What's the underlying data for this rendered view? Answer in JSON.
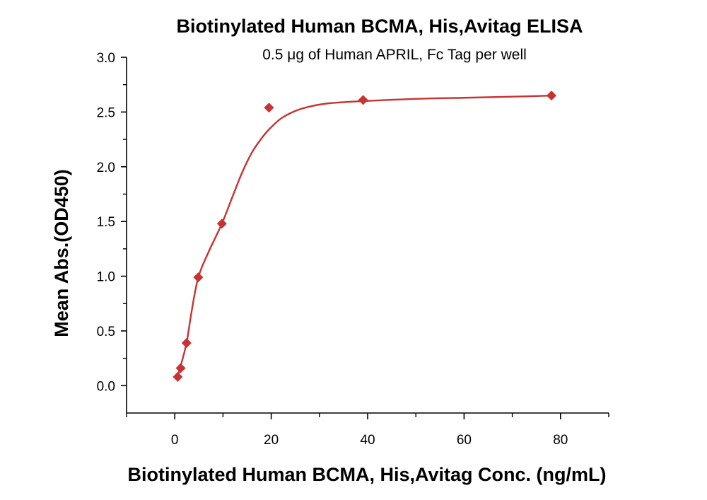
{
  "chart_data": {
    "type": "scatter",
    "title": "Biotinylated Human BCMA, His,Avitag ELISA",
    "subtitle": "0.5 μg of Human APRIL, Fc Tag per well",
    "xlabel": "Biotinylated Human BCMA, His,Avitag Conc. (ng/mL)",
    "ylabel": "Mean Abs.(OD450)",
    "xlim": [
      -10,
      90
    ],
    "ylim": [
      -0.25,
      3.0
    ],
    "x_ticks": [
      0,
      20,
      40,
      60,
      80
    ],
    "y_ticks": [
      0.0,
      0.5,
      1.0,
      1.5,
      2.0,
      2.5,
      3.0
    ],
    "y_tick_labels": [
      "0.0",
      "0.5",
      "1.0",
      "1.5",
      "2.0",
      "2.5",
      "3.0"
    ],
    "x_tick_labels": [
      "0",
      "20",
      "40",
      "60",
      "80"
    ],
    "series": [
      {
        "marker": "diamond",
        "color": "#c83232",
        "x": [
          0.61,
          1.22,
          2.44,
          4.88,
          9.77,
          19.53,
          39.06,
          78.13
        ],
        "y": [
          0.08,
          0.16,
          0.39,
          0.99,
          1.48,
          2.54,
          2.61,
          2.65
        ],
        "fit_curve": {
          "x": [
            0.61,
            1.22,
            2.44,
            3.5,
            4.88,
            7.0,
            9.77,
            12.0,
            14.0,
            16.0,
            18.0,
            19.53,
            22.0,
            25.0,
            28.0,
            32.0,
            39.06,
            50.0,
            60.0,
            70.0,
            78.13
          ],
          "y": [
            0.08,
            0.18,
            0.39,
            0.68,
            0.99,
            1.22,
            1.48,
            1.73,
            1.95,
            2.13,
            2.26,
            2.34,
            2.44,
            2.51,
            2.55,
            2.58,
            2.6,
            2.62,
            2.63,
            2.64,
            2.65
          ]
        }
      }
    ],
    "grid": false,
    "legend": "none"
  }
}
